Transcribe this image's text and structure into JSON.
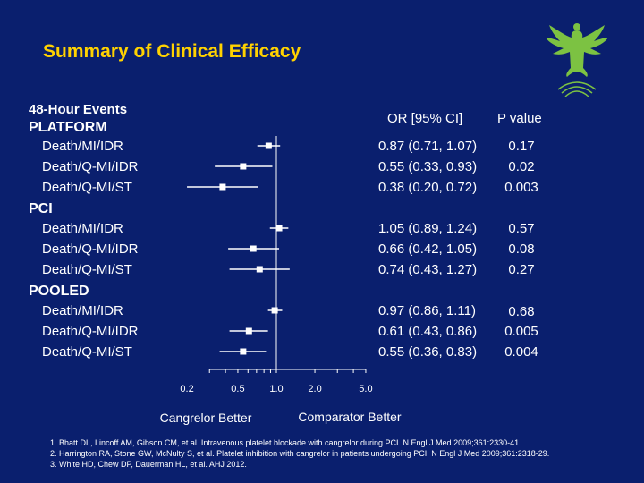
{
  "title": "Summary of Clinical Efficacy",
  "section_header": "48-Hour Events",
  "column_headers": {
    "or": "OR [95% CI]",
    "p": "P value"
  },
  "groups": [
    {
      "name": "PLATFORM",
      "rows": [
        {
          "label": "Death/MI/IDR",
          "or_text": "0.87 (0.71, 1.07)",
          "p": "0.17"
        },
        {
          "label": "Death/Q-MI/IDR",
          "or_text": "0.55 (0.33, 0.93)",
          "p": "0.02"
        },
        {
          "label": "Death/Q-MI/ST",
          "or_text": "0.38 (0.20, 0.72)",
          "p": "0.003"
        }
      ]
    },
    {
      "name": "PCI",
      "rows": [
        {
          "label": "Death/MI/IDR",
          "or_text": "1.05 (0.89, 1.24)",
          "p": "0.57"
        },
        {
          "label": "Death/Q-MI/IDR",
          "or_text": "0.66 (0.42, 1.05)",
          "p": "0.08"
        },
        {
          "label": "Death/Q-MI/ST",
          "or_text": "0.74 (0.43, 1.27)",
          "p": "0.27"
        }
      ]
    },
    {
      "name": "POOLED",
      "rows": [
        {
          "label": "Death/MI/IDR",
          "or_text": "0.97 (0.86, 1.11)",
          "p": "0.68"
        },
        {
          "label": "Death/Q-MI/IDR",
          "or_text": "0.61 (0.43, 0.86)",
          "p": "0.005"
        },
        {
          "label": "Death/Q-MI/ST",
          "or_text": "0.55 (0.36, 0.83)",
          "p": "0.004"
        }
      ]
    }
  ],
  "chart_data": {
    "type": "forest",
    "scale": "log",
    "xlim": [
      0.2,
      5.0
    ],
    "reference_line": 1.0,
    "tick_labels": [
      "0.2",
      "0.5",
      "1.0",
      "2.0",
      "5.0"
    ],
    "tick_values": [
      0.2,
      0.5,
      1.0,
      2.0,
      5.0
    ],
    "left_label": "Cangrelor Better",
    "right_label": "Comparator Better",
    "series": [
      {
        "group": "PLATFORM",
        "outcome": "Death/MI/IDR",
        "or": 0.87,
        "lo": 0.71,
        "hi": 1.07
      },
      {
        "group": "PLATFORM",
        "outcome": "Death/Q-MI/IDR",
        "or": 0.55,
        "lo": 0.33,
        "hi": 0.93
      },
      {
        "group": "PLATFORM",
        "outcome": "Death/Q-MI/ST",
        "or": 0.38,
        "lo": 0.2,
        "hi": 0.72
      },
      {
        "group": "PCI",
        "outcome": "Death/MI/IDR",
        "or": 1.05,
        "lo": 0.89,
        "hi": 1.24
      },
      {
        "group": "PCI",
        "outcome": "Death/Q-MI/IDR",
        "or": 0.66,
        "lo": 0.42,
        "hi": 1.05
      },
      {
        "group": "PCI",
        "outcome": "Death/Q-MI/ST",
        "or": 0.74,
        "lo": 0.43,
        "hi": 1.27
      },
      {
        "group": "POOLED",
        "outcome": "Death/MI/IDR",
        "or": 0.97,
        "lo": 0.86,
        "hi": 1.11
      },
      {
        "group": "POOLED",
        "outcome": "Death/Q-MI/IDR",
        "or": 0.61,
        "lo": 0.43,
        "hi": 0.86
      },
      {
        "group": "POOLED",
        "outcome": "Death/Q-MI/ST",
        "or": 0.55,
        "lo": 0.36,
        "hi": 0.83
      }
    ]
  },
  "footnotes": [
    "1. Bhatt DL, Lincoff AM, Gibson CM, et al. Intravenous platelet blockade with cangrelor during PCI. N Engl J Med 2009;361:2330-41.",
    "2. Harrington RA, Stone GW, McNulty S, et al. Platelet inhibition with cangrelor in patients undergoing PCI. N Engl J Med 2009;361:2318-29.",
    "3. White HD, Chew DP, Dauerman HL, et al. AHJ 2012."
  ],
  "colors": {
    "background": "#0a1f6e",
    "title": "#ffd200",
    "text": "#ffffff",
    "logo": "#7cc242"
  },
  "logo_icon": "eagle-logo-icon"
}
